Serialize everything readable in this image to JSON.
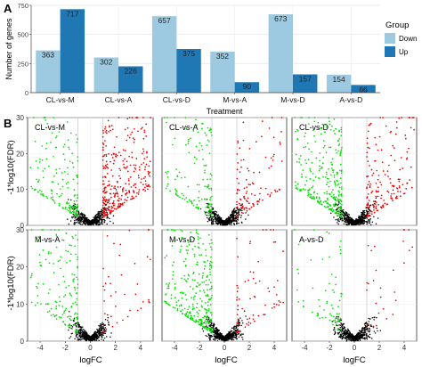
{
  "chart_data": [
    {
      "panel_label": "A",
      "type": "bar",
      "xlabel": "Treatment",
      "ylabel": "Number of genes",
      "ylim": [
        0,
        750
      ],
      "categories": [
        "CL-vs-M",
        "CL-vs-A",
        "CL-vs-D",
        "M-vs-A",
        "M-vs-D",
        "A-vs-D"
      ],
      "series": [
        {
          "name": "Down",
          "values": [
            363,
            302,
            657,
            352,
            673,
            154
          ],
          "color": "#9ecae1"
        },
        {
          "name": "Up",
          "values": [
            717,
            226,
            375,
            90,
            157,
            66
          ],
          "color": "#1f78b4"
        }
      ],
      "legend": {
        "title": "Group",
        "position": "right"
      },
      "grid": true
    },
    {
      "panel_label": "B",
      "type": "scatter",
      "xlabel": "logFC",
      "ylabel": "-1*log10(FDR)",
      "xlim": [
        -5,
        5
      ],
      "ylim": [
        0,
        30
      ],
      "xticks": [
        -4,
        -2,
        0,
        2,
        4
      ],
      "yticks": [
        0,
        10,
        20,
        30
      ],
      "threshold_logfc": 1,
      "colors": {
        "down": "#00dd00",
        "up": "#ee0000",
        "ns": "#000000"
      },
      "grid": true,
      "panels": [
        {
          "title": "CL-vs-M",
          "down": 363,
          "up": 717
        },
        {
          "title": "CL-vs-A",
          "down": 302,
          "up": 226
        },
        {
          "title": "CL-vs-D",
          "down": 657,
          "up": 375
        },
        {
          "title": "M-vs-A",
          "down": 352,
          "up": 90
        },
        {
          "title": "M-vs-D",
          "down": 673,
          "up": 157
        },
        {
          "title": "A-vs-D",
          "down": 154,
          "up": 66
        }
      ]
    }
  ]
}
